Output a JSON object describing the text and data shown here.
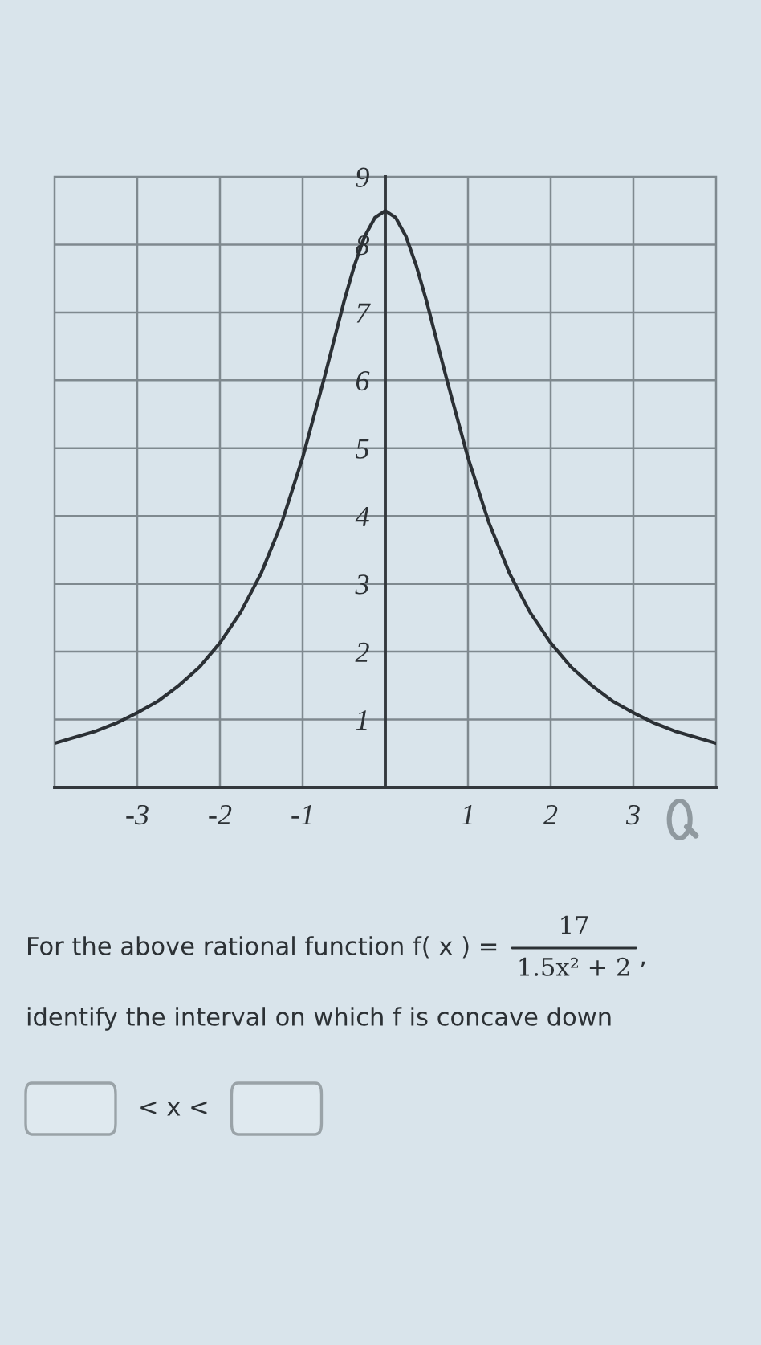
{
  "chart_data": {
    "type": "line",
    "x": [
      -4,
      -3.75,
      -3.5,
      -3.25,
      -3,
      -2.75,
      -2.5,
      -2.25,
      -2,
      -1.75,
      -1.5,
      -1.25,
      -1,
      -0.75,
      -0.625,
      -0.5,
      -0.375,
      -0.25,
      -0.125,
      0,
      0.125,
      0.25,
      0.375,
      0.5,
      0.625,
      0.75,
      1,
      1.25,
      1.5,
      1.75,
      2,
      2.25,
      2.5,
      2.75,
      3,
      3.25,
      3.5,
      3.75,
      4
    ],
    "series": [
      {
        "color": "#2b3035",
        "values": [
          0.65,
          0.74,
          0.83,
          0.95,
          1.1,
          1.27,
          1.5,
          1.77,
          2.13,
          2.58,
          3.16,
          3.91,
          4.86,
          5.98,
          6.57,
          7.16,
          7.69,
          8.12,
          8.4,
          8.5,
          8.4,
          8.12,
          7.69,
          7.16,
          6.57,
          5.98,
          4.86,
          3.91,
          3.16,
          2.58,
          2.13,
          1.77,
          1.5,
          1.27,
          1.1,
          0.95,
          0.83,
          0.74,
          0.65
        ]
      }
    ],
    "xlim": [
      -4,
      4
    ],
    "xticks": [
      -3,
      -2,
      -1,
      1,
      2,
      3
    ],
    "ylim": [
      0,
      9
    ],
    "yticks": [
      1,
      2,
      3,
      4,
      5,
      6,
      7,
      8,
      9
    ],
    "grid": true,
    "annotations": [
      "For the above rational function f( x ) =",
      "17",
      "1.5x² + 2",
      ",",
      "identify the interval on which f is concave down",
      "< x <"
    ]
  }
}
